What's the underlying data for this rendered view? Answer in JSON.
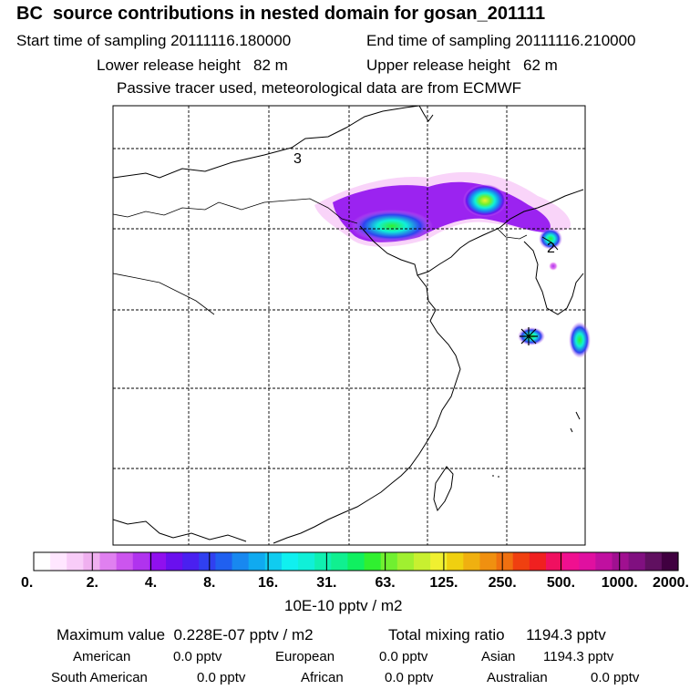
{
  "header": {
    "title": "BC  source contributions in nested domain for gosan_201111",
    "start_label": "Start time of sampling 20111116.180000",
    "end_label": "End time of sampling 20111116.210000",
    "lower_label": "Lower release height   82 m",
    "upper_label": "Upper release height   62 m",
    "tracer_label": "Passive tracer used, meteorological data are from ECMWF"
  },
  "map": {
    "region_labels": [
      "3",
      "2"
    ],
    "receptor_marker": "star"
  },
  "colorbar": {
    "tick_labels": [
      "0.",
      "2.",
      "4.",
      "8.",
      "16.",
      "31.",
      "63.",
      "125.",
      "250.",
      "500.",
      "1000.",
      "2000."
    ],
    "unit_label": "10E-10 pptv / m2",
    "colors": [
      "#ffffff",
      "#ffe6ff",
      "#f8ccf8",
      "#f0b0f0",
      "#e080f0",
      "#cc55ee",
      "#b033ee",
      "#9010ee",
      "#6a10ee",
      "#4a20f0",
      "#3040f0",
      "#2060f0",
      "#1888f0",
      "#10aaf0",
      "#10ccf0",
      "#10f0f0",
      "#10f0d8",
      "#10f0b0",
      "#10f090",
      "#10f060",
      "#30f030",
      "#70f030",
      "#a0f030",
      "#c8f030",
      "#f0f030",
      "#f0d010",
      "#f0b010",
      "#f09010",
      "#f07010",
      "#f04010",
      "#f02020",
      "#f01060",
      "#f01090",
      "#e010a0",
      "#c010a0",
      "#a01090",
      "#801080",
      "#601060",
      "#400040"
    ]
  },
  "summary": {
    "max_label": "Maximum value  0.228E-07 pptv / m2",
    "total_label": "Total mixing ratio     1194.3 pptv",
    "american_label": "American",
    "american_value": "0.0 pptv",
    "european_label": "European",
    "european_value": "0.0 pptv",
    "asian_label": "Asian",
    "asian_value": "1194.3 pptv",
    "south_american_label": "South American",
    "south_american_value": "0.0 pptv",
    "african_label": "African",
    "african_value": "0.0 pptv",
    "australian_label": "Australian",
    "australian_value": "0.0 pptv"
  }
}
